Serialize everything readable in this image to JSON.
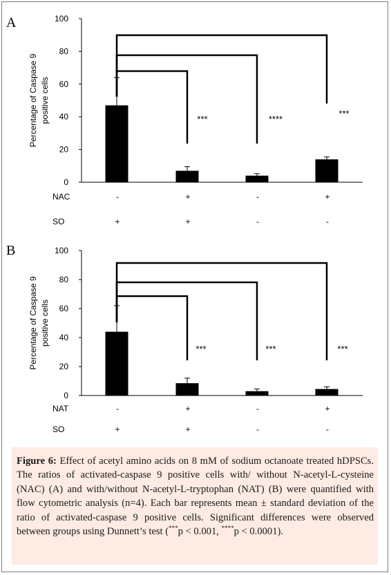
{
  "chart_data": [
    {
      "type": "bar",
      "panel_label": "A",
      "ylabel_line1": "Percentage of Caspase 9",
      "ylabel_line2": "positive cells",
      "ylim": [
        0,
        100
      ],
      "yticks": [
        0,
        20,
        40,
        60,
        80,
        100
      ],
      "values": [
        47,
        7,
        4,
        14
      ],
      "errors": [
        17,
        2.5,
        1.2,
        1.5
      ],
      "bar_color": "#000000",
      "significance": [
        "***",
        "****",
        "***"
      ],
      "condition_rows": [
        {
          "label": "NAC",
          "signs": [
            "-",
            "+",
            "-",
            "+"
          ]
        },
        {
          "label": "SO",
          "signs": [
            "+",
            "+",
            "-",
            "-"
          ]
        }
      ]
    },
    {
      "type": "bar",
      "panel_label": "B",
      "ylabel_line1": "Percentage of Caspase 9",
      "ylabel_line2": "positive cells",
      "ylim": [
        0,
        100
      ],
      "yticks": [
        0,
        20,
        40,
        60,
        80,
        100
      ],
      "values": [
        44,
        8.5,
        3,
        4.5
      ],
      "errors": [
        18,
        3.5,
        1.5,
        1.5
      ],
      "bar_color": "#000000",
      "significance": [
        "***",
        "***",
        "***"
      ],
      "condition_rows": [
        {
          "label": "NAT",
          "signs": [
            "-",
            "+",
            "-",
            "+"
          ]
        },
        {
          "label": "SO",
          "signs": [
            "+",
            "+",
            "-",
            "-"
          ]
        }
      ]
    }
  ],
  "caption": {
    "figure_label": "Figure 6:",
    "text_1": " Effect of acetyl amino acids on 8 mM of sodium octanoate treated hDPSCs. The ratios of activated-caspase 9 positive cells with/ without N-acetyl-L-cysteine (NAC) (A) and with/without N-acetyl-L-tryptophan (NAT) (B) were quantified with flow cytometric analysis (n=4). Each bar represents mean ± standard deviation of the ratio of activated-caspase 9 positive cells. Significant differences were observed between groups using Dunnett’s test (",
    "sup_1": "***",
    "text_2": "p < 0.001, ",
    "sup_2": "****",
    "text_3": "p < 0.0001)."
  }
}
